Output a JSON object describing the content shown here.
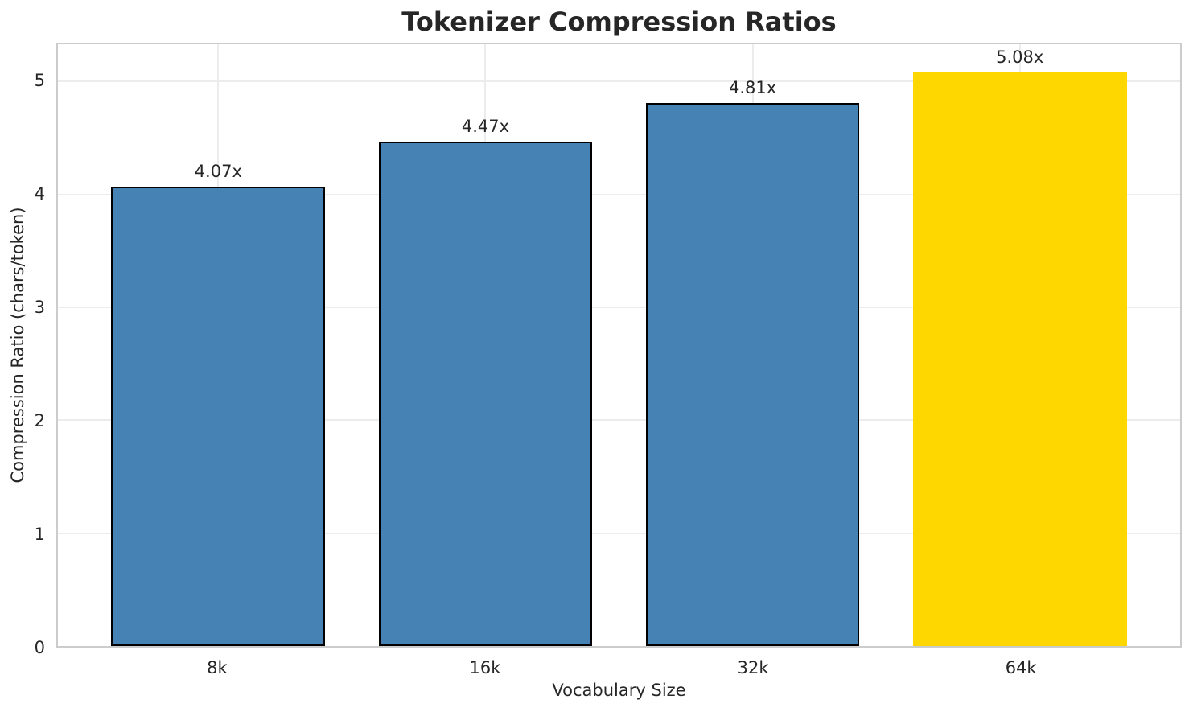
{
  "chart_data": {
    "type": "bar",
    "title": "Tokenizer Compression Ratios",
    "xlabel": "Vocabulary Size",
    "ylabel": "Compression Ratio (chars/token)",
    "categories": [
      "8k",
      "16k",
      "32k",
      "64k"
    ],
    "values": [
      4.07,
      4.47,
      4.81,
      5.08
    ],
    "bar_labels": [
      "4.07x",
      "4.47x",
      "4.81x",
      "5.08x"
    ],
    "yticks": [
      0,
      1,
      2,
      3,
      4,
      5
    ],
    "ylim": [
      0,
      5.33
    ],
    "xlim": [
      -0.6,
      3.6
    ],
    "bar_width": 0.8,
    "grid": true,
    "legend": "none",
    "highlight_index": 3,
    "colors": {
      "bar_default": "#4682b4",
      "bar_highlight": "#ffd700",
      "bar_edge": "#000000",
      "spine": "#cccccc",
      "grid": "#ececec",
      "text": "#262626"
    }
  }
}
